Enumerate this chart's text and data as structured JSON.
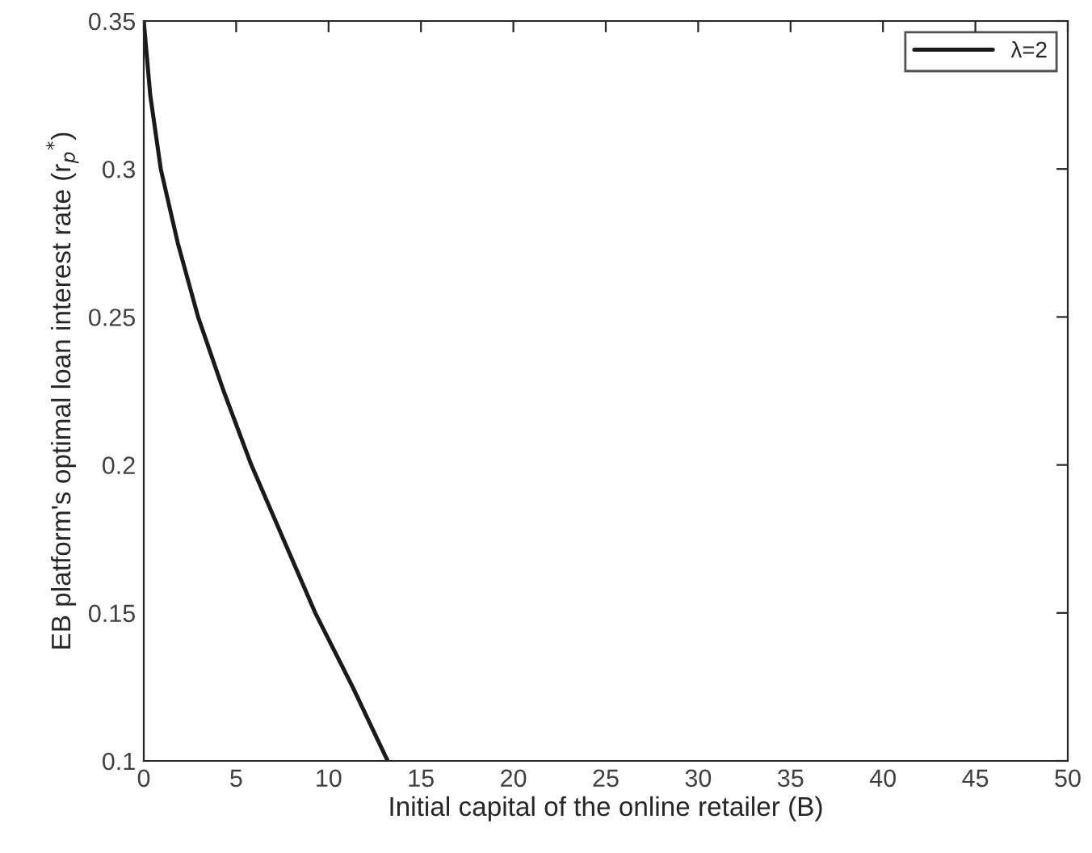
{
  "chart_data": {
    "type": "line",
    "xlabel": "Initial capital of the online retailer (B)",
    "ylabel": "EB platform's optimal loan interest rate (r$_{p}$$^{*}$)",
    "xlim": [
      0,
      50
    ],
    "xticks": [
      0,
      5,
      10,
      15,
      20,
      25,
      30,
      35,
      40,
      45,
      50
    ],
    "ylim": [
      0.1,
      0.35
    ],
    "yticks": [
      0.1,
      0.15,
      0.2,
      0.25,
      0.3,
      0.35
    ],
    "series": [
      {
        "name": "λ=2",
        "color": "#1a1a1a",
        "x": [
          0,
          0.35,
          0.92,
          1.84,
          2.94,
          4.32,
          5.82,
          7.55,
          9.28,
          11.3,
          13.2
        ],
        "values": [
          0.35,
          0.325,
          0.3,
          0.275,
          0.25,
          0.225,
          0.2,
          0.175,
          0.15,
          0.125,
          0.1
        ]
      }
    ],
    "legend": "top right",
    "grid": false,
    "marker": "none",
    "line_style": "solid"
  }
}
